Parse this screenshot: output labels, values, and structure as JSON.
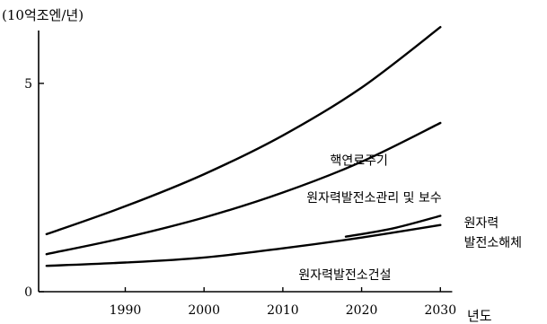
{
  "chart_data": {
    "type": "line",
    "ylabel": "(10억조엔/년)",
    "xlabel": "년도",
    "xlim": [
      1979,
      2040
    ],
    "ylim": [
      0,
      6.7
    ],
    "xticks": [
      1990,
      2000,
      2010,
      2020,
      2030
    ],
    "yticks": [
      {
        "value": 0,
        "label": "0"
      },
      {
        "value": 5,
        "label": "5"
      }
    ],
    "grid": false,
    "series": [
      {
        "name": "핵연료주기",
        "x": [
          1980,
          1990,
          2000,
          2010,
          2020,
          2030
        ],
        "y": [
          1.38,
          2.05,
          2.82,
          3.75,
          4.9,
          6.35
        ]
      },
      {
        "name": "원자력발전소관리 및 보수",
        "x": [
          1980,
          1990,
          2000,
          2010,
          2020,
          2030
        ],
        "y": [
          0.9,
          1.3,
          1.78,
          2.38,
          3.12,
          4.05
        ]
      },
      {
        "name": "원자력발전소해체",
        "x": [
          2018,
          2024,
          2030
        ],
        "y": [
          1.32,
          1.52,
          1.82
        ]
      },
      {
        "name": "원자력발전소건설",
        "x": [
          1980,
          1990,
          2000,
          2010,
          2020,
          2030
        ],
        "y": [
          0.62,
          0.7,
          0.82,
          1.04,
          1.3,
          1.6
        ]
      }
    ],
    "annotations": [
      {
        "series": 0,
        "lines": [
          "핵연료주기"
        ],
        "anchor": [
          2016,
          3.05
        ]
      },
      {
        "series": 1,
        "lines": [
          "원자력발전소관리 및 보수"
        ],
        "anchor": [
          2013,
          2.15
        ]
      },
      {
        "series": 2,
        "lines": [
          "원자력",
          "발전소해체"
        ],
        "anchor": [
          2033,
          1.55
        ]
      },
      {
        "series": 3,
        "lines": [
          "원자력발전소건설"
        ],
        "anchor": [
          2012,
          0.3
        ]
      }
    ]
  }
}
